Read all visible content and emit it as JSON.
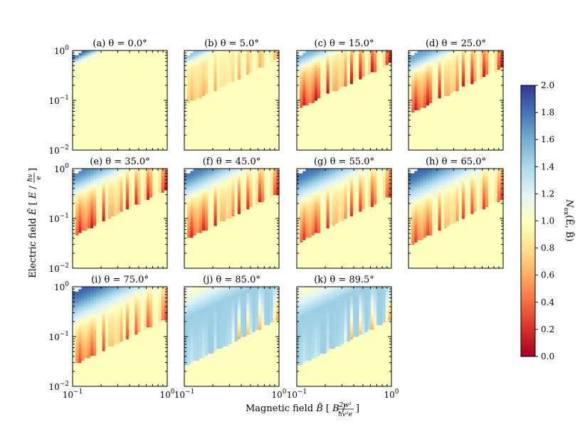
{
  "chart_data": {
    "type": "heatmap",
    "panels": [
      {
        "label": "(a) θ = 0.0°",
        "theta": 0.0
      },
      {
        "label": "(b) θ = 5.0°",
        "theta": 5.0
      },
      {
        "label": "(c) θ = 15.0°",
        "theta": 15.0
      },
      {
        "label": "(d) θ = 25.0°",
        "theta": 25.0
      },
      {
        "label": "(e) θ = 35.0°",
        "theta": 35.0
      },
      {
        "label": "(f) θ = 45.0°",
        "theta": 45.0
      },
      {
        "label": "(g) θ = 55.0°",
        "theta": 55.0
      },
      {
        "label": "(h) θ = 65.0°",
        "theta": 65.0
      },
      {
        "label": "(i) θ = 75.0°",
        "theta": 75.0
      },
      {
        "label": "(j) θ = 85.0°",
        "theta": 85.0
      },
      {
        "label": "(k) θ = 89.5°",
        "theta": 89.5
      }
    ],
    "x_scale": "log",
    "y_scale": "log",
    "xlim": [
      0.1,
      1.0
    ],
    "ylim": [
      0.01,
      1.0
    ],
    "x_ticks": [
      {
        "base": "10",
        "exp": "−1"
      },
      {
        "base": "10",
        "exp": "0"
      }
    ],
    "y_ticks": [
      {
        "base": "10",
        "exp": "0"
      },
      {
        "base": "10",
        "exp": "−1"
      },
      {
        "base": "10",
        "exp": "−2"
      }
    ],
    "xlabel": {
      "text": "Magnetic field ",
      "symbol": "B̃",
      "unit_num": "2w²",
      "unit_den": "ħv²e"
    },
    "ylabel": {
      "text": "Electric field ",
      "symbol": "Ẽ",
      "unit_num": "ħv",
      "unit_den": "e"
    },
    "colorbar": {
      "label": "N_ex(Ẽ, B̃)",
      "min": 0.0,
      "max": 2.0,
      "ticks": [
        "0.0",
        "0.2",
        "0.4",
        "0.6",
        "0.8",
        "1.0",
        "1.2",
        "1.4",
        "1.6",
        "1.8",
        "2.0"
      ],
      "colormap": [
        "#a50026",
        "#d73027",
        "#f46d43",
        "#fdae61",
        "#fee090",
        "#ffffbf",
        "#e0f3f8",
        "#abd9e9",
        "#74add1",
        "#4575b4",
        "#313695"
      ]
    }
  }
}
